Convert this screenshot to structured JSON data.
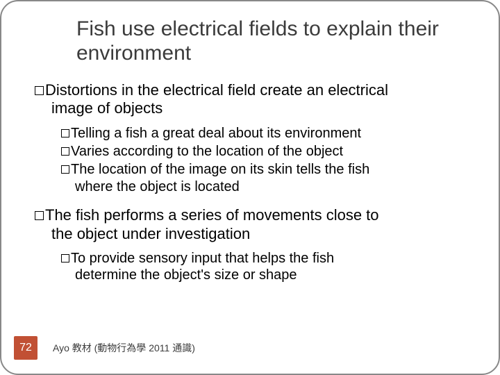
{
  "slide": {
    "title": "Fish use electrical fields to explain their environment",
    "bullets": [
      {
        "level": 1,
        "first": "Distortions in the electrical field create an electrical",
        "rest": "image of objects"
      },
      {
        "level": 2,
        "first": "Telling a fish a great deal about its environment",
        "rest": ""
      },
      {
        "level": 2,
        "first": "Varies according to the location of the object",
        "rest": ""
      },
      {
        "level": 2,
        "first": "The location of the image on its skin tells the fish",
        "rest": "where the object is located"
      },
      {
        "level": 1,
        "first": "The fish performs a series of movements close to",
        "rest": "the object under investigation"
      },
      {
        "level": 2,
        "first": "To provide sensory input that helps the fish",
        "rest": "determine the object's size or shape"
      }
    ],
    "page_number": "72",
    "credit": "Ayo 教材 (動物行為學 2011 通識)",
    "colors": {
      "border": "#888888",
      "title_text": "#3b3b3b",
      "body_text": "#000000",
      "accent_bg": "#c15034",
      "accent_text": "#ffffff",
      "background": "#ffffff"
    },
    "fonts": {
      "title_size_pt": 30,
      "lvl1_size_pt": 22,
      "lvl2_size_pt": 20,
      "footer_size_pt": 14
    }
  }
}
